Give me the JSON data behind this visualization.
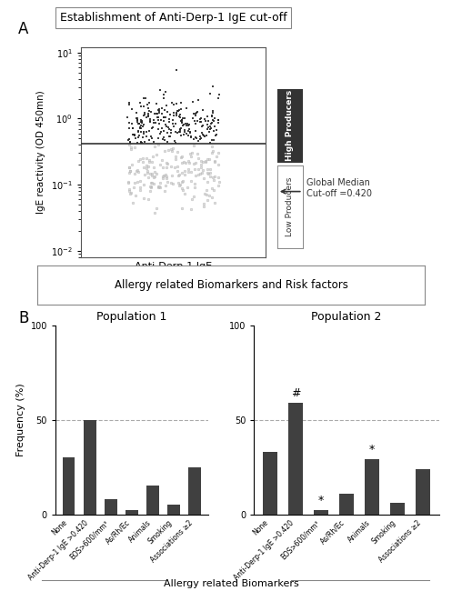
{
  "panel_A_title": "Establishment of Anti-Derp-1 IgE cut-off",
  "panel_A_xlabel": "Anti-Derp-1 IgE",
  "panel_A_ylabel": "IgE reactivity (OD 450mn)",
  "cutoff": 0.42,
  "cutoff_label": "Global Median\nCut-off =0.420",
  "high_producers_label": "High Producers",
  "low_producers_label": "Low Producers",
  "panel_B_title_left": "Population 1",
  "panel_B_title_right": "Population 2",
  "panel_B_ylabel": "Frequency (%)",
  "panel_B_xlabel": "Allergy related Biomarkers",
  "box_label": "Allergy related Biomarkers and Risk factors",
  "bar_categories": [
    "None",
    "Anti-Derp-1 IgE >0.420",
    "EOS>600/mm³",
    "As/Rh/Ec",
    "Animals",
    "Smoking",
    "Associations ≥2"
  ],
  "pop1_values": [
    30,
    50,
    8,
    2,
    15,
    5,
    25
  ],
  "pop2_values": [
    33,
    59,
    2,
    11,
    29,
    6,
    24
  ],
  "pop2_annotations": [
    "",
    "#",
    "*",
    "",
    "*",
    "",
    ""
  ],
  "bar_color": "#404040",
  "ylim_bar": [
    0,
    100
  ],
  "yticks_bar": [
    0,
    50,
    100
  ],
  "background_color": "#ffffff",
  "A_label": "A",
  "B_label": "B"
}
